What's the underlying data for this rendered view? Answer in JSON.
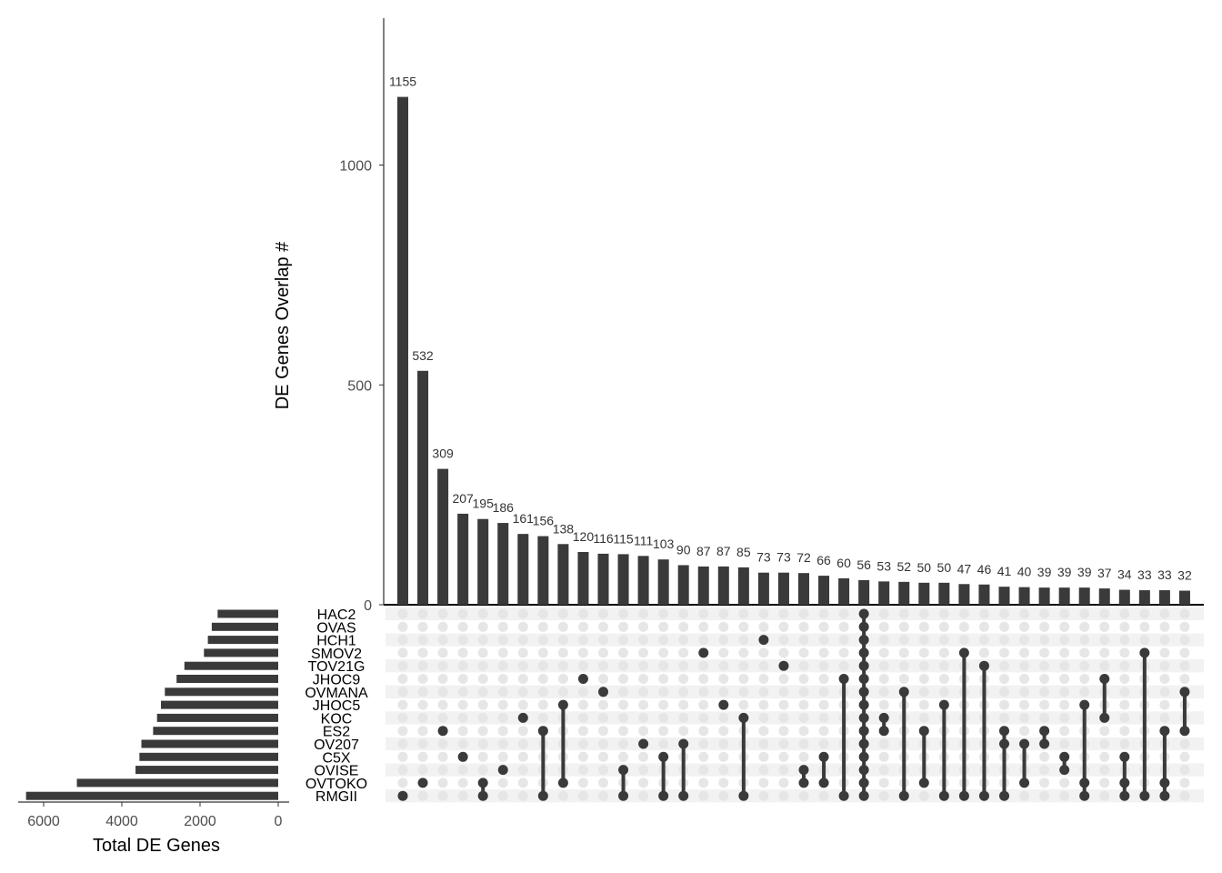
{
  "chart_data": {
    "type": "bar",
    "subtype": "upset",
    "colors": {
      "bar": "#3a3a3a",
      "dot_active": "#3a3a3a",
      "dot_inactive": "#e6e6e6",
      "stripe": "#f2f2f2"
    },
    "intersection_axis": {
      "label": "DE Genes Overlap #",
      "ticks": [
        0,
        500,
        1000
      ],
      "ylim": [
        0,
        1250
      ]
    },
    "set_size_axis": {
      "label": "Total DE Genes",
      "ticks": [
        6000,
        4000,
        2000,
        0
      ],
      "xlim": [
        0,
        6600
      ],
      "reversed": true
    },
    "sets": [
      {
        "name": "HAC2",
        "size": 1550
      },
      {
        "name": "OVAS",
        "size": 1700
      },
      {
        "name": "HCH1",
        "size": 1800
      },
      {
        "name": "SMOV2",
        "size": 1900
      },
      {
        "name": "TOV21G",
        "size": 2400
      },
      {
        "name": "JHOC9",
        "size": 2600
      },
      {
        "name": "OVMANA",
        "size": 2900
      },
      {
        "name": "JHOC5",
        "size": 3000
      },
      {
        "name": "KOC",
        "size": 3100
      },
      {
        "name": "ES2",
        "size": 3200
      },
      {
        "name": "OV207",
        "size": 3500
      },
      {
        "name": "C5X",
        "size": 3550
      },
      {
        "name": "OVISE",
        "size": 3650
      },
      {
        "name": "OVTOKO",
        "size": 5150
      },
      {
        "name": "RMGII",
        "size": 6450
      }
    ],
    "intersections": [
      {
        "value": 1155,
        "label": "1155",
        "sets": [
          "RMGII"
        ]
      },
      {
        "value": 532,
        "label": "532",
        "sets": [
          "OVTOKO"
        ]
      },
      {
        "value": 309,
        "label": "309",
        "sets": [
          "ES2"
        ]
      },
      {
        "value": 207,
        "label": "207",
        "sets": [
          "C5X"
        ]
      },
      {
        "value": 195,
        "label": "195",
        "sets": [
          "OVTOKO",
          "RMGII"
        ]
      },
      {
        "value": 186,
        "label": "186",
        "sets": [
          "OVISE"
        ]
      },
      {
        "value": 161,
        "label": "161",
        "sets": [
          "KOC"
        ]
      },
      {
        "value": 156,
        "label": "156",
        "sets": [
          "ES2",
          "RMGII"
        ]
      },
      {
        "value": 138,
        "label": "138",
        "sets": [
          "JHOC5",
          "OVTOKO"
        ]
      },
      {
        "value": 120,
        "label": "120",
        "sets": [
          "JHOC9"
        ]
      },
      {
        "value": 116,
        "label": "116",
        "sets": [
          "OVMANA"
        ]
      },
      {
        "value": 115,
        "label": "115",
        "sets": [
          "OVISE",
          "RMGII"
        ]
      },
      {
        "value": 111,
        "label": "111",
        "sets": [
          "OV207"
        ]
      },
      {
        "value": 103,
        "label": "103",
        "sets": [
          "C5X",
          "RMGII"
        ]
      },
      {
        "value": 90,
        "label": "90",
        "sets": [
          "OV207",
          "RMGII"
        ]
      },
      {
        "value": 87,
        "label": "87",
        "sets": [
          "SMOV2"
        ]
      },
      {
        "value": 87,
        "label": "87",
        "sets": [
          "JHOC5"
        ]
      },
      {
        "value": 85,
        "label": "85",
        "sets": [
          "KOC",
          "RMGII"
        ]
      },
      {
        "value": 73,
        "label": "73",
        "sets": [
          "HCH1"
        ]
      },
      {
        "value": 73,
        "label": "73",
        "sets": [
          "TOV21G"
        ]
      },
      {
        "value": 72,
        "label": "72",
        "sets": [
          "OVISE",
          "OVTOKO"
        ]
      },
      {
        "value": 66,
        "label": "66",
        "sets": [
          "C5X",
          "OVTOKO"
        ]
      },
      {
        "value": 60,
        "label": "60",
        "sets": [
          "JHOC9",
          "RMGII"
        ]
      },
      {
        "value": 56,
        "label": "56",
        "sets": [
          "HAC2",
          "OVAS",
          "HCH1",
          "SMOV2",
          "TOV21G",
          "JHOC9",
          "OVMANA",
          "JHOC5",
          "KOC",
          "ES2",
          "OV207",
          "C5X",
          "OVISE",
          "OVTOKO",
          "RMGII"
        ]
      },
      {
        "value": 53,
        "label": "53",
        "sets": [
          "KOC",
          "ES2"
        ]
      },
      {
        "value": 52,
        "label": "52",
        "sets": [
          "OVMANA",
          "RMGII"
        ]
      },
      {
        "value": 50,
        "label": "50",
        "sets": [
          "ES2",
          "OVTOKO"
        ]
      },
      {
        "value": 50,
        "label": "50",
        "sets": [
          "JHOC5",
          "RMGII"
        ]
      },
      {
        "value": 47,
        "label": "47",
        "sets": [
          "SMOV2",
          "RMGII"
        ]
      },
      {
        "value": 46,
        "label": "46",
        "sets": [
          "TOV21G",
          "RMGII"
        ]
      },
      {
        "value": 41,
        "label": "41",
        "sets": [
          "ES2",
          "OV207",
          "RMGII"
        ]
      },
      {
        "value": 40,
        "label": "40",
        "sets": [
          "OV207",
          "OVTOKO"
        ]
      },
      {
        "value": 39,
        "label": "39",
        "sets": [
          "ES2",
          "OV207"
        ]
      },
      {
        "value": 39,
        "label": "39",
        "sets": [
          "C5X",
          "OVISE"
        ]
      },
      {
        "value": 39,
        "label": "39",
        "sets": [
          "JHOC5",
          "OVTOKO",
          "RMGII"
        ]
      },
      {
        "value": 37,
        "label": "37",
        "sets": [
          "JHOC9",
          "KOC"
        ]
      },
      {
        "value": 34,
        "label": "34",
        "sets": [
          "C5X",
          "OVTOKO",
          "RMGII"
        ]
      },
      {
        "value": 33,
        "label": "33",
        "sets": [
          "SMOV2",
          "RMGII"
        ]
      },
      {
        "value": 33,
        "label": "33",
        "sets": [
          "ES2",
          "OVTOKO",
          "RMGII"
        ]
      },
      {
        "value": 32,
        "label": "32",
        "sets": [
          "OVMANA",
          "ES2"
        ]
      }
    ]
  }
}
